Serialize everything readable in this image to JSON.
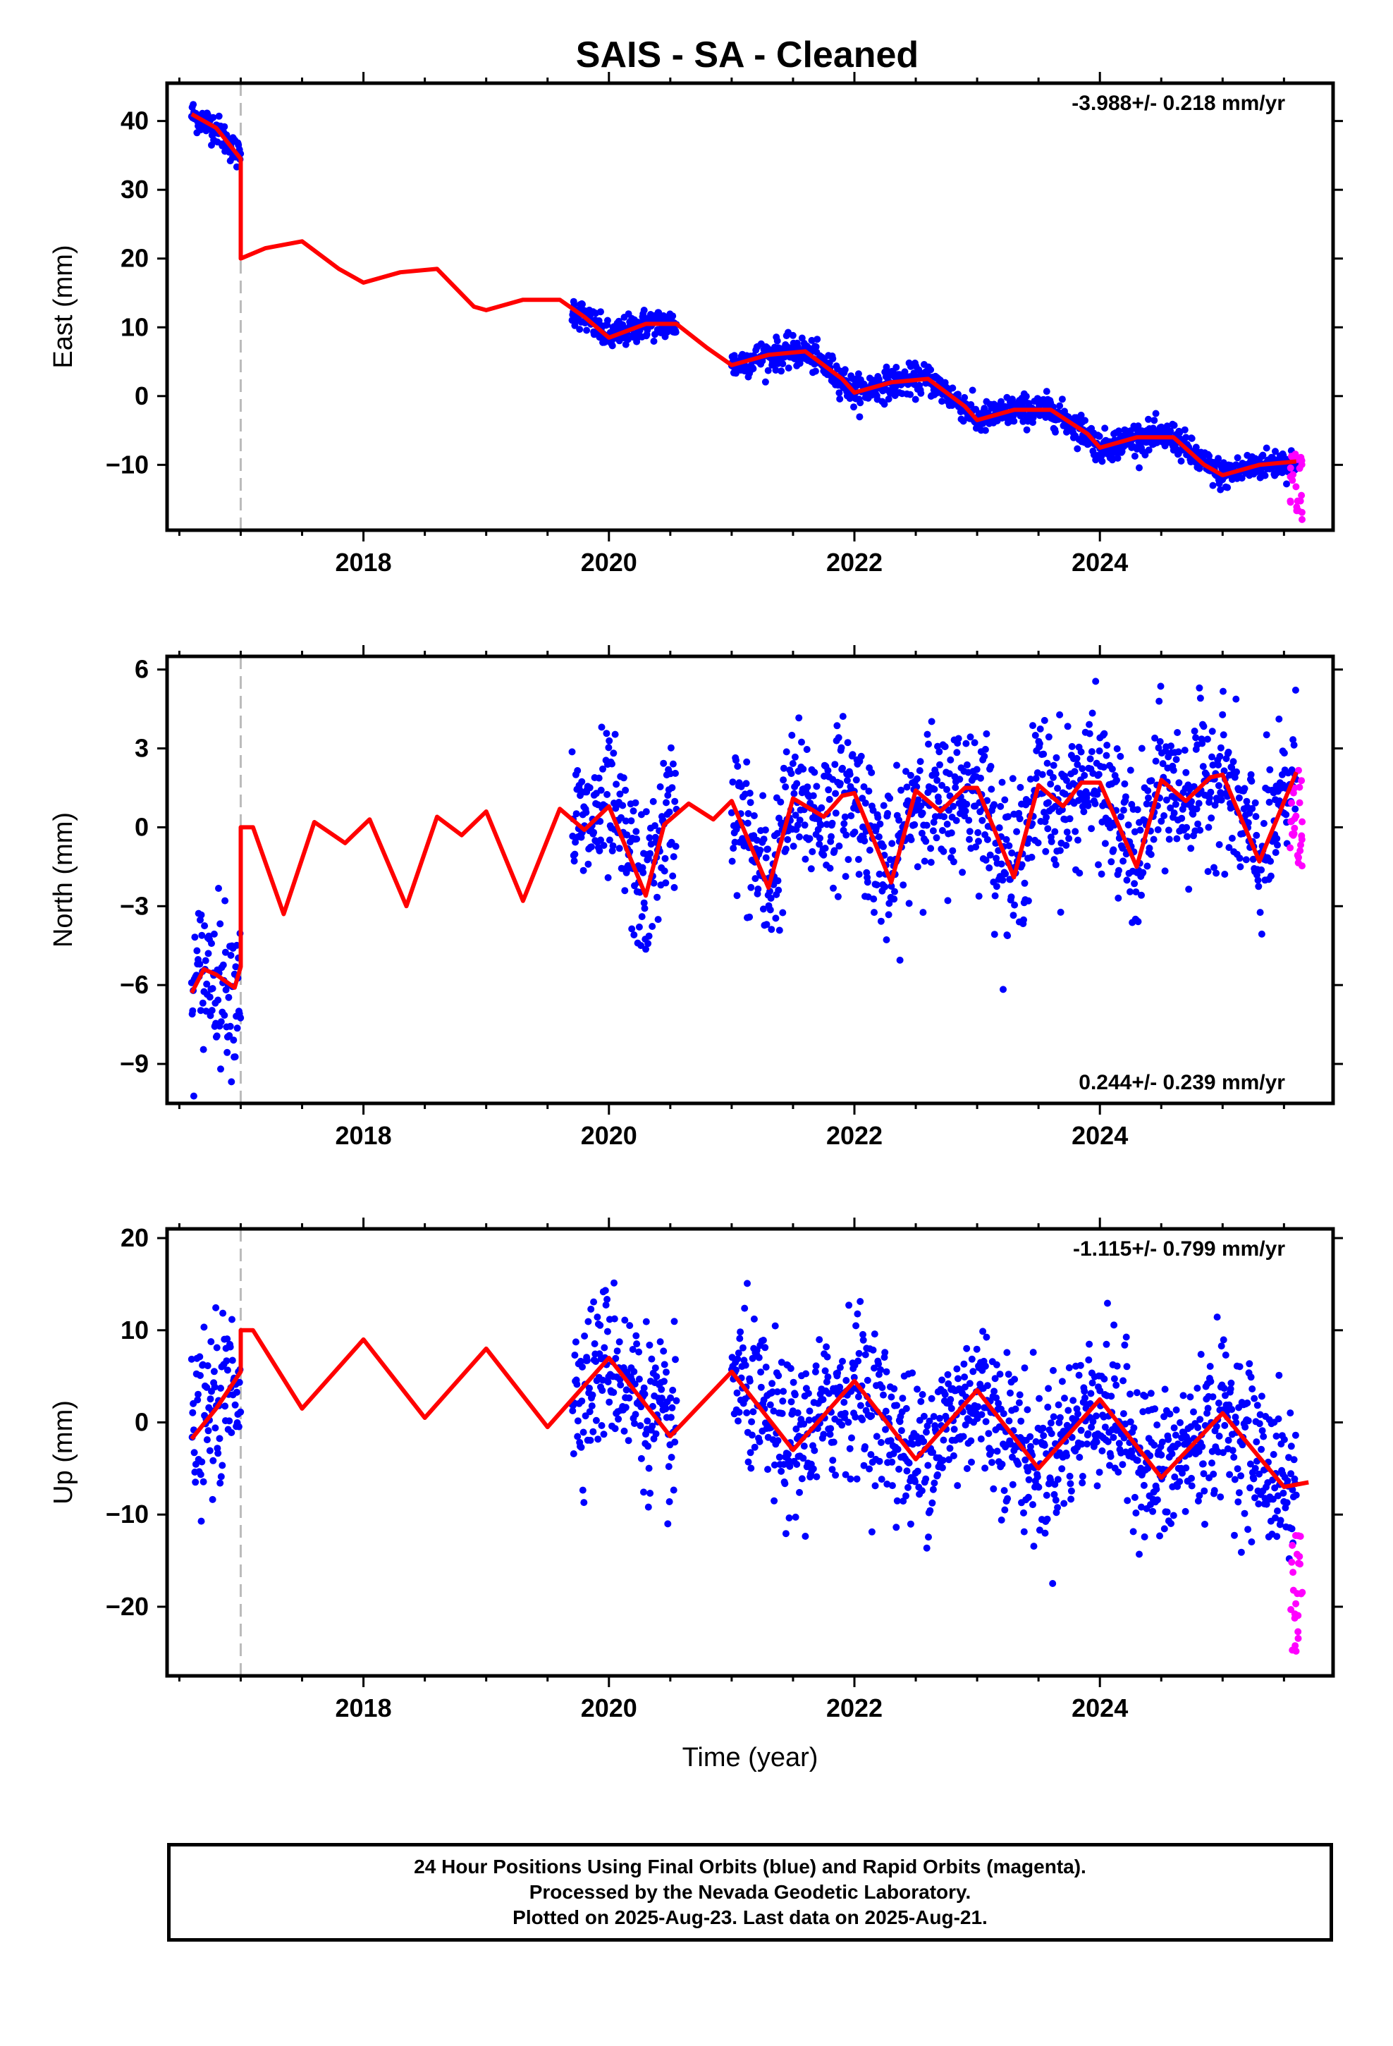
{
  "chart_data": {
    "type": "scatter",
    "title": "SAIS  - SA - Cleaned",
    "xlabel": "Time (year)",
    "xlim": [
      2016.4,
      2025.9
    ],
    "xticks": [
      2018,
      2020,
      2022,
      2024
    ],
    "xticks_minor": [
      2016.5,
      2017,
      2017.5,
      2018.5,
      2019,
      2019.5,
      2020.5,
      2021,
      2021.5,
      2022.5,
      2023,
      2023.5,
      2024.5,
      2025,
      2025.5
    ],
    "xtick_labels": [
      "2018",
      "2020",
      "2022",
      "2024"
    ],
    "equipment_change_epoch": 2017.0,
    "colors": {
      "final_orbits": "#0000ff",
      "rapid_orbits": "#ff00ff",
      "model": "#ff0000",
      "offset_line": "#bbbbbb"
    },
    "panels": [
      {
        "name": "east",
        "ylabel": "East (mm)",
        "ylim": [
          -19.5,
          45.5
        ],
        "yticks": [
          -10,
          0,
          10,
          20,
          30,
          40
        ],
        "ytick_labels": [
          "−10",
          "0",
          "10",
          "20",
          "30",
          "40"
        ],
        "rate_label": "-3.988+/- 0.218 mm/yr",
        "rate_position": "top-right",
        "data_segments": [
          [
            2016.6,
            2017.0
          ],
          [
            2019.7,
            2020.55
          ],
          [
            2021.0,
            2025.6
          ]
        ],
        "rapid_segment": [
          2025.55,
          2025.65
        ],
        "rapid_range": [
          -18,
          -8
        ],
        "model_curve": {
          "x": [
            2016.6,
            2016.8,
            2017.0,
            2017.0,
            2017.2,
            2017.5,
            2017.8,
            2018.0,
            2018.3,
            2018.6,
            2018.9,
            2019.0,
            2019.3,
            2019.6,
            2019.8,
            2020.0,
            2020.3,
            2020.55,
            2020.8,
            2021.0,
            2021.3,
            2021.6,
            2021.9,
            2022.0,
            2022.3,
            2022.6,
            2022.9,
            2023.0,
            2023.3,
            2023.6,
            2023.9,
            2024.0,
            2024.3,
            2024.6,
            2024.85,
            2025.0,
            2025.3,
            2025.6
          ],
          "y": [
            41,
            39,
            34.5,
            20,
            21.5,
            22.5,
            18.5,
            16.5,
            18,
            18.5,
            13,
            12.5,
            14,
            14,
            11.5,
            8.5,
            10.5,
            10.5,
            7,
            4.5,
            6,
            6.5,
            2.5,
            0.5,
            2,
            2.5,
            -1.5,
            -3.5,
            -2,
            -2,
            -5.5,
            -7.5,
            -6,
            -6,
            -10,
            -11.5,
            -10,
            -9.5
          ]
        }
      },
      {
        "name": "north",
        "ylabel": "North (mm)",
        "ylim": [
          -10.5,
          6.5
        ],
        "yticks": [
          -9,
          -6,
          -3,
          0,
          3,
          6
        ],
        "ytick_labels": [
          "−9",
          "−6",
          "−3",
          "0",
          "3",
          "6"
        ],
        "rate_label": "0.244+/- 0.239 mm/yr",
        "rate_position": "bottom-right",
        "data_segments": [
          [
            2016.6,
            2017.0
          ],
          [
            2019.7,
            2020.55
          ],
          [
            2021.0,
            2025.6
          ]
        ],
        "rapid_segment": [
          2025.55,
          2025.65
        ],
        "rapid_range": [
          -1.8,
          2.6
        ],
        "model_curve": {
          "x": [
            2016.6,
            2016.7,
            2016.8,
            2016.95,
            2017.0,
            2017.0,
            2017.1,
            2017.35,
            2017.6,
            2017.85,
            2018.05,
            2018.35,
            2018.6,
            2018.8,
            2019.0,
            2019.3,
            2019.6,
            2019.8,
            2020.0,
            2020.3,
            2020.45,
            2020.65,
            2020.85,
            2021.0,
            2021.3,
            2021.5,
            2021.75,
            2021.9,
            2022.0,
            2022.3,
            2022.5,
            2022.7,
            2022.9,
            2023.0,
            2023.3,
            2023.5,
            2023.7,
            2023.85,
            2024.0,
            2024.3,
            2024.5,
            2024.7,
            2024.9,
            2025.0,
            2025.3,
            2025.6
          ],
          "y": [
            -6.3,
            -5.4,
            -5.6,
            -6.1,
            -5.3,
            0,
            0,
            -3.3,
            0.2,
            -0.6,
            0.3,
            -3.0,
            0.4,
            -0.3,
            0.6,
            -2.8,
            0.7,
            -0.1,
            0.8,
            -2.6,
            0.1,
            0.9,
            0.3,
            1.0,
            -2.3,
            1.1,
            0.4,
            1.2,
            1.3,
            -2.1,
            1.4,
            0.6,
            1.5,
            1.5,
            -1.9,
            1.6,
            0.8,
            1.7,
            1.7,
            -1.5,
            1.8,
            1.0,
            1.9,
            2.0,
            -1.3,
            2.1
          ]
        }
      },
      {
        "name": "up",
        "ylabel": "Up (mm)",
        "ylim": [
          -27.5,
          21
        ],
        "yticks": [
          -20,
          -10,
          0,
          10,
          20
        ],
        "ytick_labels": [
          "−20",
          "−10",
          "0",
          "10",
          "20"
        ],
        "rate_label": "-1.115+/- 0.799 mm/yr",
        "rate_position": "top-right",
        "data_segments": [
          [
            2016.6,
            2017.0
          ],
          [
            2019.7,
            2020.55
          ],
          [
            2021.0,
            2025.6
          ]
        ],
        "rapid_segment": [
          2025.55,
          2025.65
        ],
        "rapid_range": [
          -26,
          -12
        ],
        "model_curve": {
          "x": [
            2016.6,
            2016.8,
            2017.0,
            2017.0,
            2017.1,
            2017.5,
            2018.0,
            2018.5,
            2019.0,
            2019.5,
            2020.0,
            2020.5,
            2021.0,
            2021.5,
            2022.0,
            2022.5,
            2023.0,
            2023.5,
            2024.0,
            2024.5,
            2025.0,
            2025.5,
            2025.7
          ],
          "y": [
            -1.8,
            1.5,
            5.5,
            10,
            10,
            1.5,
            9,
            0.5,
            8,
            -0.5,
            7,
            -1.5,
            5.5,
            -3,
            4.5,
            -4,
            3.5,
            -5,
            2.5,
            -6,
            1.0,
            -7,
            -6.5
          ]
        }
      }
    ],
    "footer_lines": [
      "24 Hour Positions Using Final Orbits (blue) and Rapid Orbits (magenta).",
      "Processed by the Nevada Geodetic Laboratory.",
      "Plotted on 2025-Aug-23. Last data on 2025-Aug-21."
    ]
  }
}
